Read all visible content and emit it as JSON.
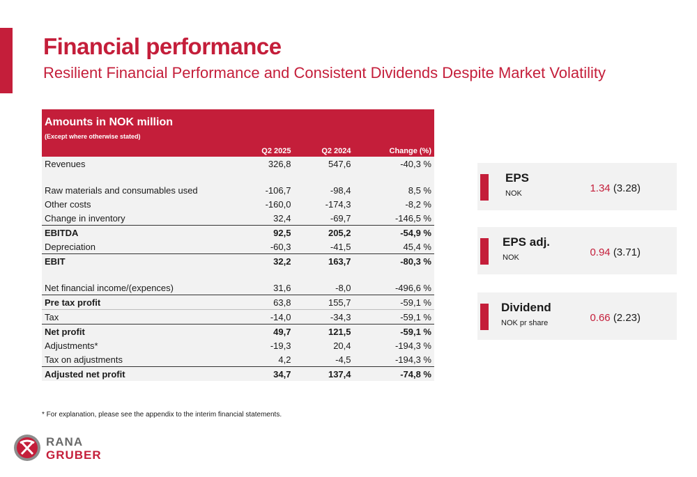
{
  "title": "Financial performance",
  "subtitle": "Resilient Financial Performance and Consistent Dividends Despite Market Volatility",
  "table": {
    "heading": "Amounts in NOK million",
    "subheading": "(Except where otherwise stated)",
    "columns": [
      "Q2 2025",
      "Q2 2024",
      "Change (%)"
    ],
    "rows": [
      {
        "label": "Revenues",
        "q2_2025": "326,8",
        "q2_2024": "547,6",
        "change": "-40,3 %"
      },
      {
        "label": "Raw materials and consumables used",
        "q2_2025": "-106,7",
        "q2_2024": "-98,4",
        "change": "8,5 %"
      },
      {
        "label": "Other costs",
        "q2_2025": "-160,0",
        "q2_2024": "-174,3",
        "change": "-8,2 %"
      },
      {
        "label": "Change in inventory",
        "q2_2025": "32,4",
        "q2_2024": "-69,7",
        "change": "-146,5 %"
      },
      {
        "label": "EBITDA",
        "q2_2025": "92,5",
        "q2_2024": "205,2",
        "change": "-54,9 %"
      },
      {
        "label": "Depreciation",
        "q2_2025": "-60,3",
        "q2_2024": "-41,5",
        "change": "45,4 %"
      },
      {
        "label": "EBIT",
        "q2_2025": "32,2",
        "q2_2024": "163,7",
        "change": "-80,3 %"
      },
      {
        "label": "Net financial income/(expences)",
        "q2_2025": "31,6",
        "q2_2024": "-8,0",
        "change": "-496,6 %"
      },
      {
        "label": "Pre tax profit",
        "q2_2025": "63,8",
        "q2_2024": "155,7",
        "change": "-59,1 %"
      },
      {
        "label": "Tax",
        "q2_2025": "-14,0",
        "q2_2024": "-34,3",
        "change": "-59,1 %"
      },
      {
        "label": "Net profit",
        "q2_2025": "49,7",
        "q2_2024": "121,5",
        "change": "-59,1 %"
      },
      {
        "label": "Adjustments*",
        "q2_2025": "-19,3",
        "q2_2024": "20,4",
        "change": "-194,3 %"
      },
      {
        "label": "Tax on adjustments",
        "q2_2025": "4,2",
        "q2_2024": "-4,5",
        "change": "-194,3 %"
      },
      {
        "label": "Adjusted net profit",
        "q2_2025": "34,7",
        "q2_2024": "137,4",
        "change": "-74,8 %"
      }
    ]
  },
  "footnote": "* For explanation, please see the appendix to the interim financial statements.",
  "kpis": [
    {
      "label": "EPS",
      "unit": "NOK",
      "value": "1.34",
      "previous": "(3.28)"
    },
    {
      "label": "EPS adj.",
      "unit": "NOK",
      "value": "0.94",
      "previous": "(3.71)"
    },
    {
      "label": "Dividend",
      "unit": "NOK pr share",
      "value": "0.66",
      "previous": "(2.23)"
    }
  ],
  "logo": {
    "line1": "RANA",
    "line2": "GRUBER"
  },
  "colors": {
    "accent": "#c41e3a",
    "row_bg": "#f2f2f2",
    "kpi_bg": "#f2f2f2"
  }
}
